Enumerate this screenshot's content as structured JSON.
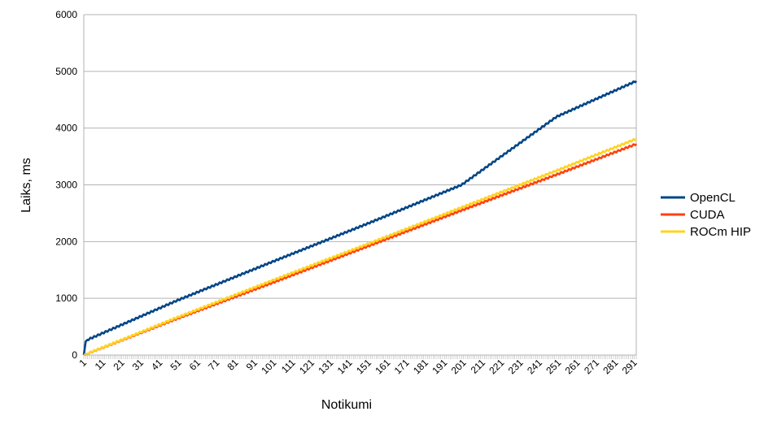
{
  "chart_data": {
    "type": "line",
    "xlabel": "Notikumi",
    "ylabel": "Laiks, ms",
    "ylim": [
      0,
      6000
    ],
    "yticks": [
      0,
      1000,
      2000,
      3000,
      4000,
      5000,
      6000
    ],
    "x_range": [
      1,
      292
    ],
    "x_tick_labels": [
      "1",
      "11",
      "21",
      "31",
      "41",
      "51",
      "61",
      "71",
      "81",
      "91",
      "101",
      "111",
      "121",
      "131",
      "141",
      "151",
      "161",
      "171",
      "181",
      "191",
      "201",
      "211",
      "221",
      "231",
      "241",
      "251",
      "261",
      "271",
      "281",
      "291"
    ],
    "grid": "horizontal",
    "legend": "right",
    "series": [
      {
        "name": "OpenCL",
        "color": "#004586",
        "x": [
          1,
          2,
          3,
          50,
          100,
          150,
          200,
          250,
          292
        ],
        "values": [
          0,
          240,
          270,
          960,
          1640,
          2310,
          3000,
          4200,
          4830
        ]
      },
      {
        "name": "CUDA",
        "color": "#ff420e",
        "x": [
          1,
          50,
          100,
          150,
          200,
          250,
          292
        ],
        "values": [
          0,
          640,
          1270,
          1910,
          2550,
          3180,
          3720
        ]
      },
      {
        "name": "ROCm HIP",
        "color": "#ffd320",
        "x": [
          1,
          50,
          100,
          150,
          200,
          250,
          292
        ],
        "values": [
          0,
          660,
          1310,
          1950,
          2600,
          3250,
          3810
        ]
      }
    ]
  }
}
